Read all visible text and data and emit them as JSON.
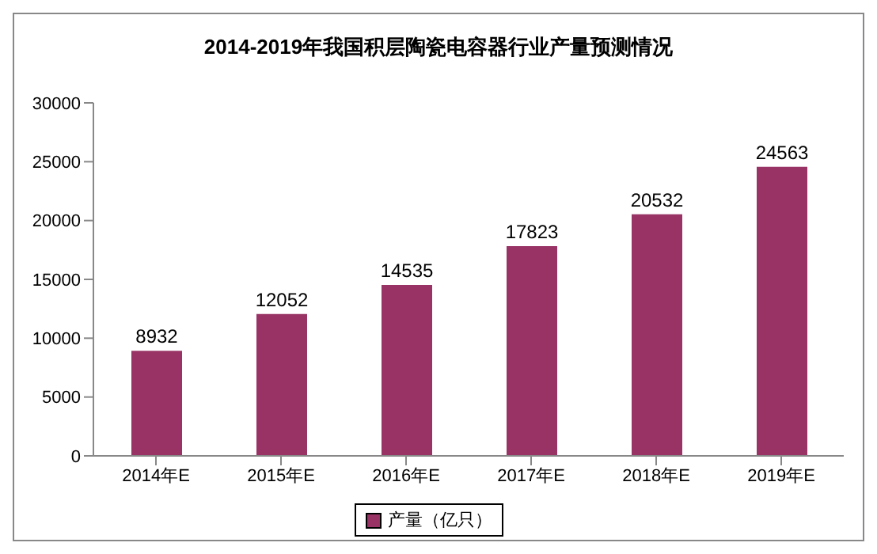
{
  "chart_data": {
    "type": "bar",
    "title": "2014-2019年我国积层陶瓷电容器行业产量预测情况",
    "categories": [
      "2014年E",
      "2015年E",
      "2016年E",
      "2017年E",
      "2018年E",
      "2019年E"
    ],
    "series": [
      {
        "name": "产量（亿只）",
        "color": "#993366",
        "values": [
          8932,
          12052,
          14535,
          17823,
          20532,
          24563
        ]
      }
    ],
    "ylim": [
      0,
      30000
    ],
    "yticks": [
      0,
      5000,
      10000,
      15000,
      20000,
      25000,
      30000
    ],
    "data_labels": true,
    "legend": "bottom",
    "grid": false
  }
}
